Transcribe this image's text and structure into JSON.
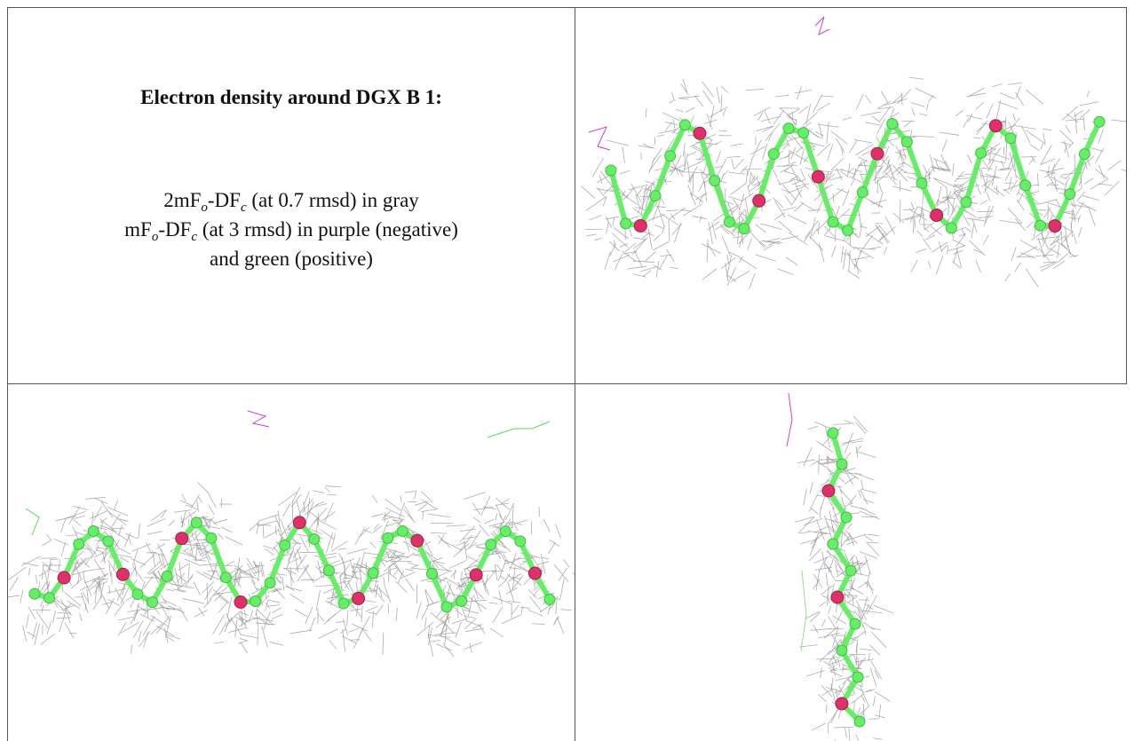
{
  "header": {
    "title": "Electron density around DGX B 1:"
  },
  "legend": {
    "lines": [
      [
        "2mF",
        "o",
        "-DF",
        "c",
        " (at 0.7 rmsd) in gray"
      ],
      [
        "mF",
        "o",
        "-DF",
        "c",
        " (at 3 rmsd) in purple (negative)"
      ],
      [
        "and green (positive)"
      ]
    ]
  }
}
